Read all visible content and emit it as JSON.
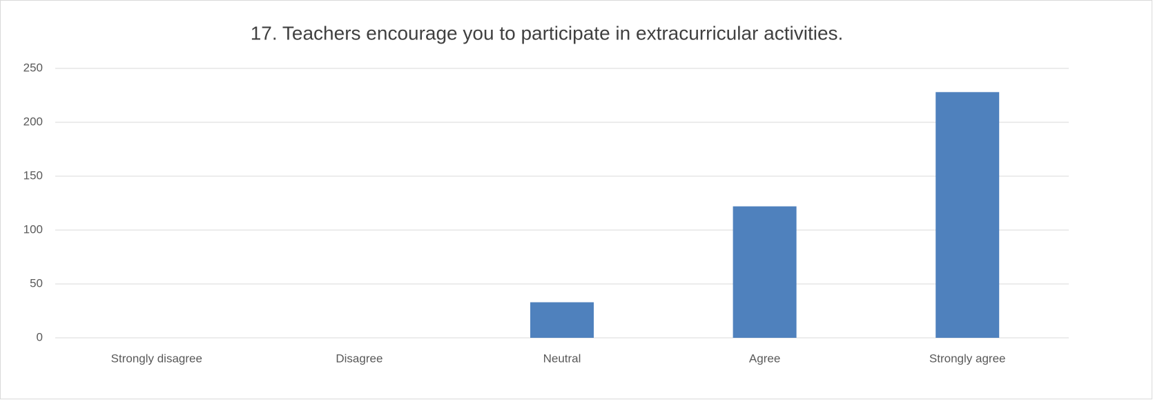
{
  "chart_data": {
    "type": "bar",
    "title": "17. Teachers encourage you to participate in extracurricular activities.",
    "categories": [
      "Strongly disagree",
      "Disagree",
      "Neutral",
      "Agree",
      "Strongly agree"
    ],
    "values": [
      0,
      0,
      33,
      122,
      228
    ],
    "color": "#4f81bd",
    "ylim": [
      0,
      250
    ],
    "yticks": [
      0,
      50,
      100,
      150,
      200,
      250
    ],
    "grid": true
  }
}
